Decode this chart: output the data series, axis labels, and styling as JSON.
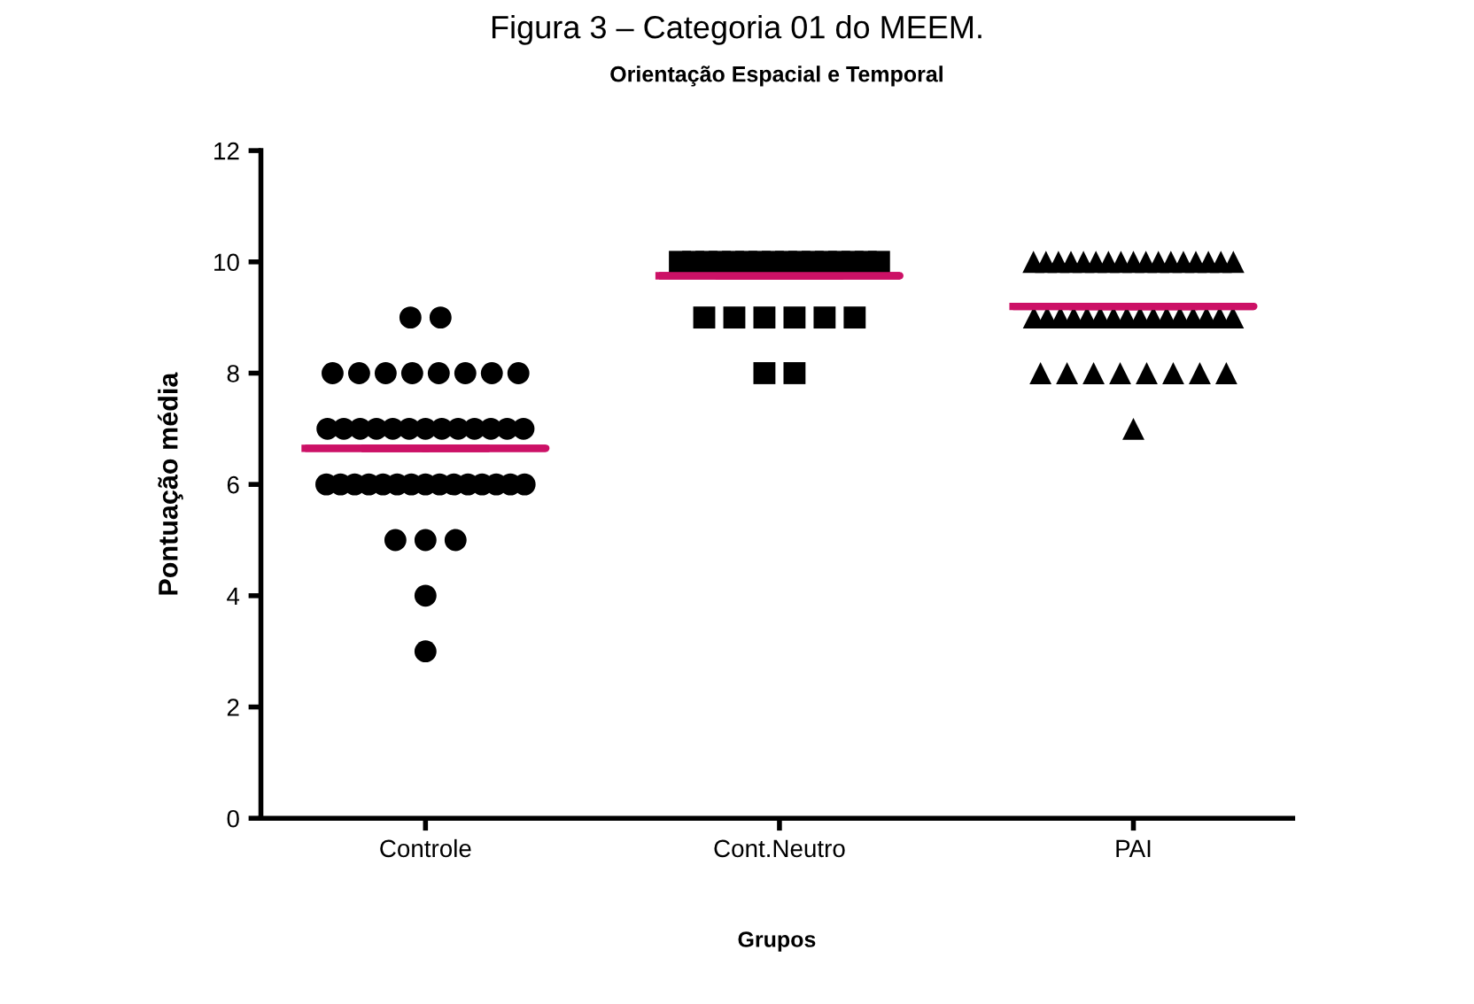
{
  "chart_data": {
    "type": "scatter",
    "title": "Orientação Espacial e Temporal",
    "subtitle": "Figura 3 – Categoria 01 do MEEM.",
    "xlabel": "Grupos",
    "ylabel": "Pontuação média",
    "categories": [
      "Controle",
      "Cont.Neutro",
      "PAI"
    ],
    "ylim": [
      0,
      12
    ],
    "yticks": [
      0,
      2,
      4,
      6,
      8,
      10,
      12
    ],
    "grid": false,
    "series": [
      {
        "marker": "circle",
        "color": "#000000",
        "x": [
          "Controle",
          "Controle",
          "Controle",
          "Controle",
          "Controle",
          "Controle",
          "Controle",
          "Controle",
          "Controle",
          "Controle",
          "Controle",
          "Controle",
          "Controle",
          "Controle",
          "Controle",
          "Controle",
          "Controle",
          "Controle",
          "Controle",
          "Controle",
          "Controle",
          "Controle",
          "Controle",
          "Controle",
          "Controle",
          "Controle",
          "Controle",
          "Controle",
          "Controle",
          "Controle",
          "Controle",
          "Controle",
          "Controle",
          "Controle",
          "Controle",
          "Controle",
          "Controle",
          "Controle",
          "Controle",
          "Controle",
          "Controle",
          "Controle",
          "Controle"
        ],
        "values": [
          9,
          9,
          8,
          8,
          8,
          8,
          8,
          8,
          8,
          8,
          7,
          7,
          7,
          7,
          7,
          7,
          7,
          7,
          7,
          7,
          7,
          7,
          7,
          6,
          6,
          6,
          6,
          6,
          6,
          6,
          6,
          6,
          6,
          6,
          6,
          6,
          6,
          6,
          5,
          5,
          5,
          4,
          3
        ]
      },
      {
        "marker": "square",
        "color": "#000000",
        "x": [
          "Cont.Neutro",
          "Cont.Neutro",
          "Cont.Neutro",
          "Cont.Neutro",
          "Cont.Neutro",
          "Cont.Neutro",
          "Cont.Neutro",
          "Cont.Neutro",
          "Cont.Neutro",
          "Cont.Neutro",
          "Cont.Neutro",
          "Cont.Neutro",
          "Cont.Neutro",
          "Cont.Neutro",
          "Cont.Neutro",
          "Cont.Neutro",
          "Cont.Neutro",
          "Cont.Neutro",
          "Cont.Neutro",
          "Cont.Neutro",
          "Cont.Neutro",
          "Cont.Neutro",
          "Cont.Neutro",
          "Cont.Neutro"
        ],
        "values": [
          10,
          10,
          10,
          10,
          10,
          10,
          10,
          10,
          10,
          10,
          10,
          10,
          10,
          10,
          10,
          10,
          9,
          9,
          9,
          9,
          9,
          9,
          8,
          8
        ]
      },
      {
        "marker": "triangle",
        "color": "#000000",
        "x": [
          "PAI",
          "PAI",
          "PAI",
          "PAI",
          "PAI",
          "PAI",
          "PAI",
          "PAI",
          "PAI",
          "PAI",
          "PAI",
          "PAI",
          "PAI",
          "PAI",
          "PAI",
          "PAI",
          "PAI",
          "PAI",
          "PAI",
          "PAI",
          "PAI",
          "PAI",
          "PAI",
          "PAI",
          "PAI",
          "PAI",
          "PAI",
          "PAI",
          "PAI",
          "PAI",
          "PAI",
          "PAI",
          "PAI",
          "PAI",
          "PAI",
          "PAI",
          "PAI",
          "PAI",
          "PAI",
          "PAI",
          "PAI",
          "PAI"
        ],
        "values": [
          10,
          10,
          10,
          10,
          10,
          10,
          10,
          10,
          10,
          10,
          10,
          10,
          10,
          10,
          10,
          10,
          10,
          9,
          9,
          9,
          9,
          9,
          9,
          9,
          9,
          9,
          9,
          9,
          9,
          9,
          9,
          9,
          9,
          8,
          8,
          8,
          8,
          8,
          8,
          8,
          8,
          7
        ]
      },
      {
        "type": "box",
        "color": "#cc1166",
        "boxes": [
          {
            "low": 6.65,
            "q1": 6.65,
            "median": 6.65,
            "q3": 6.65,
            "high": 6.65
          },
          {
            "low": 9.75,
            "q1": 9.75,
            "median": 9.75,
            "q3": 9.75,
            "high": 9.75
          },
          {
            "low": 9.2,
            "q1": 9.2,
            "median": 9.2,
            "q3": 9.2,
            "high": 9.2
          }
        ]
      }
    ]
  }
}
